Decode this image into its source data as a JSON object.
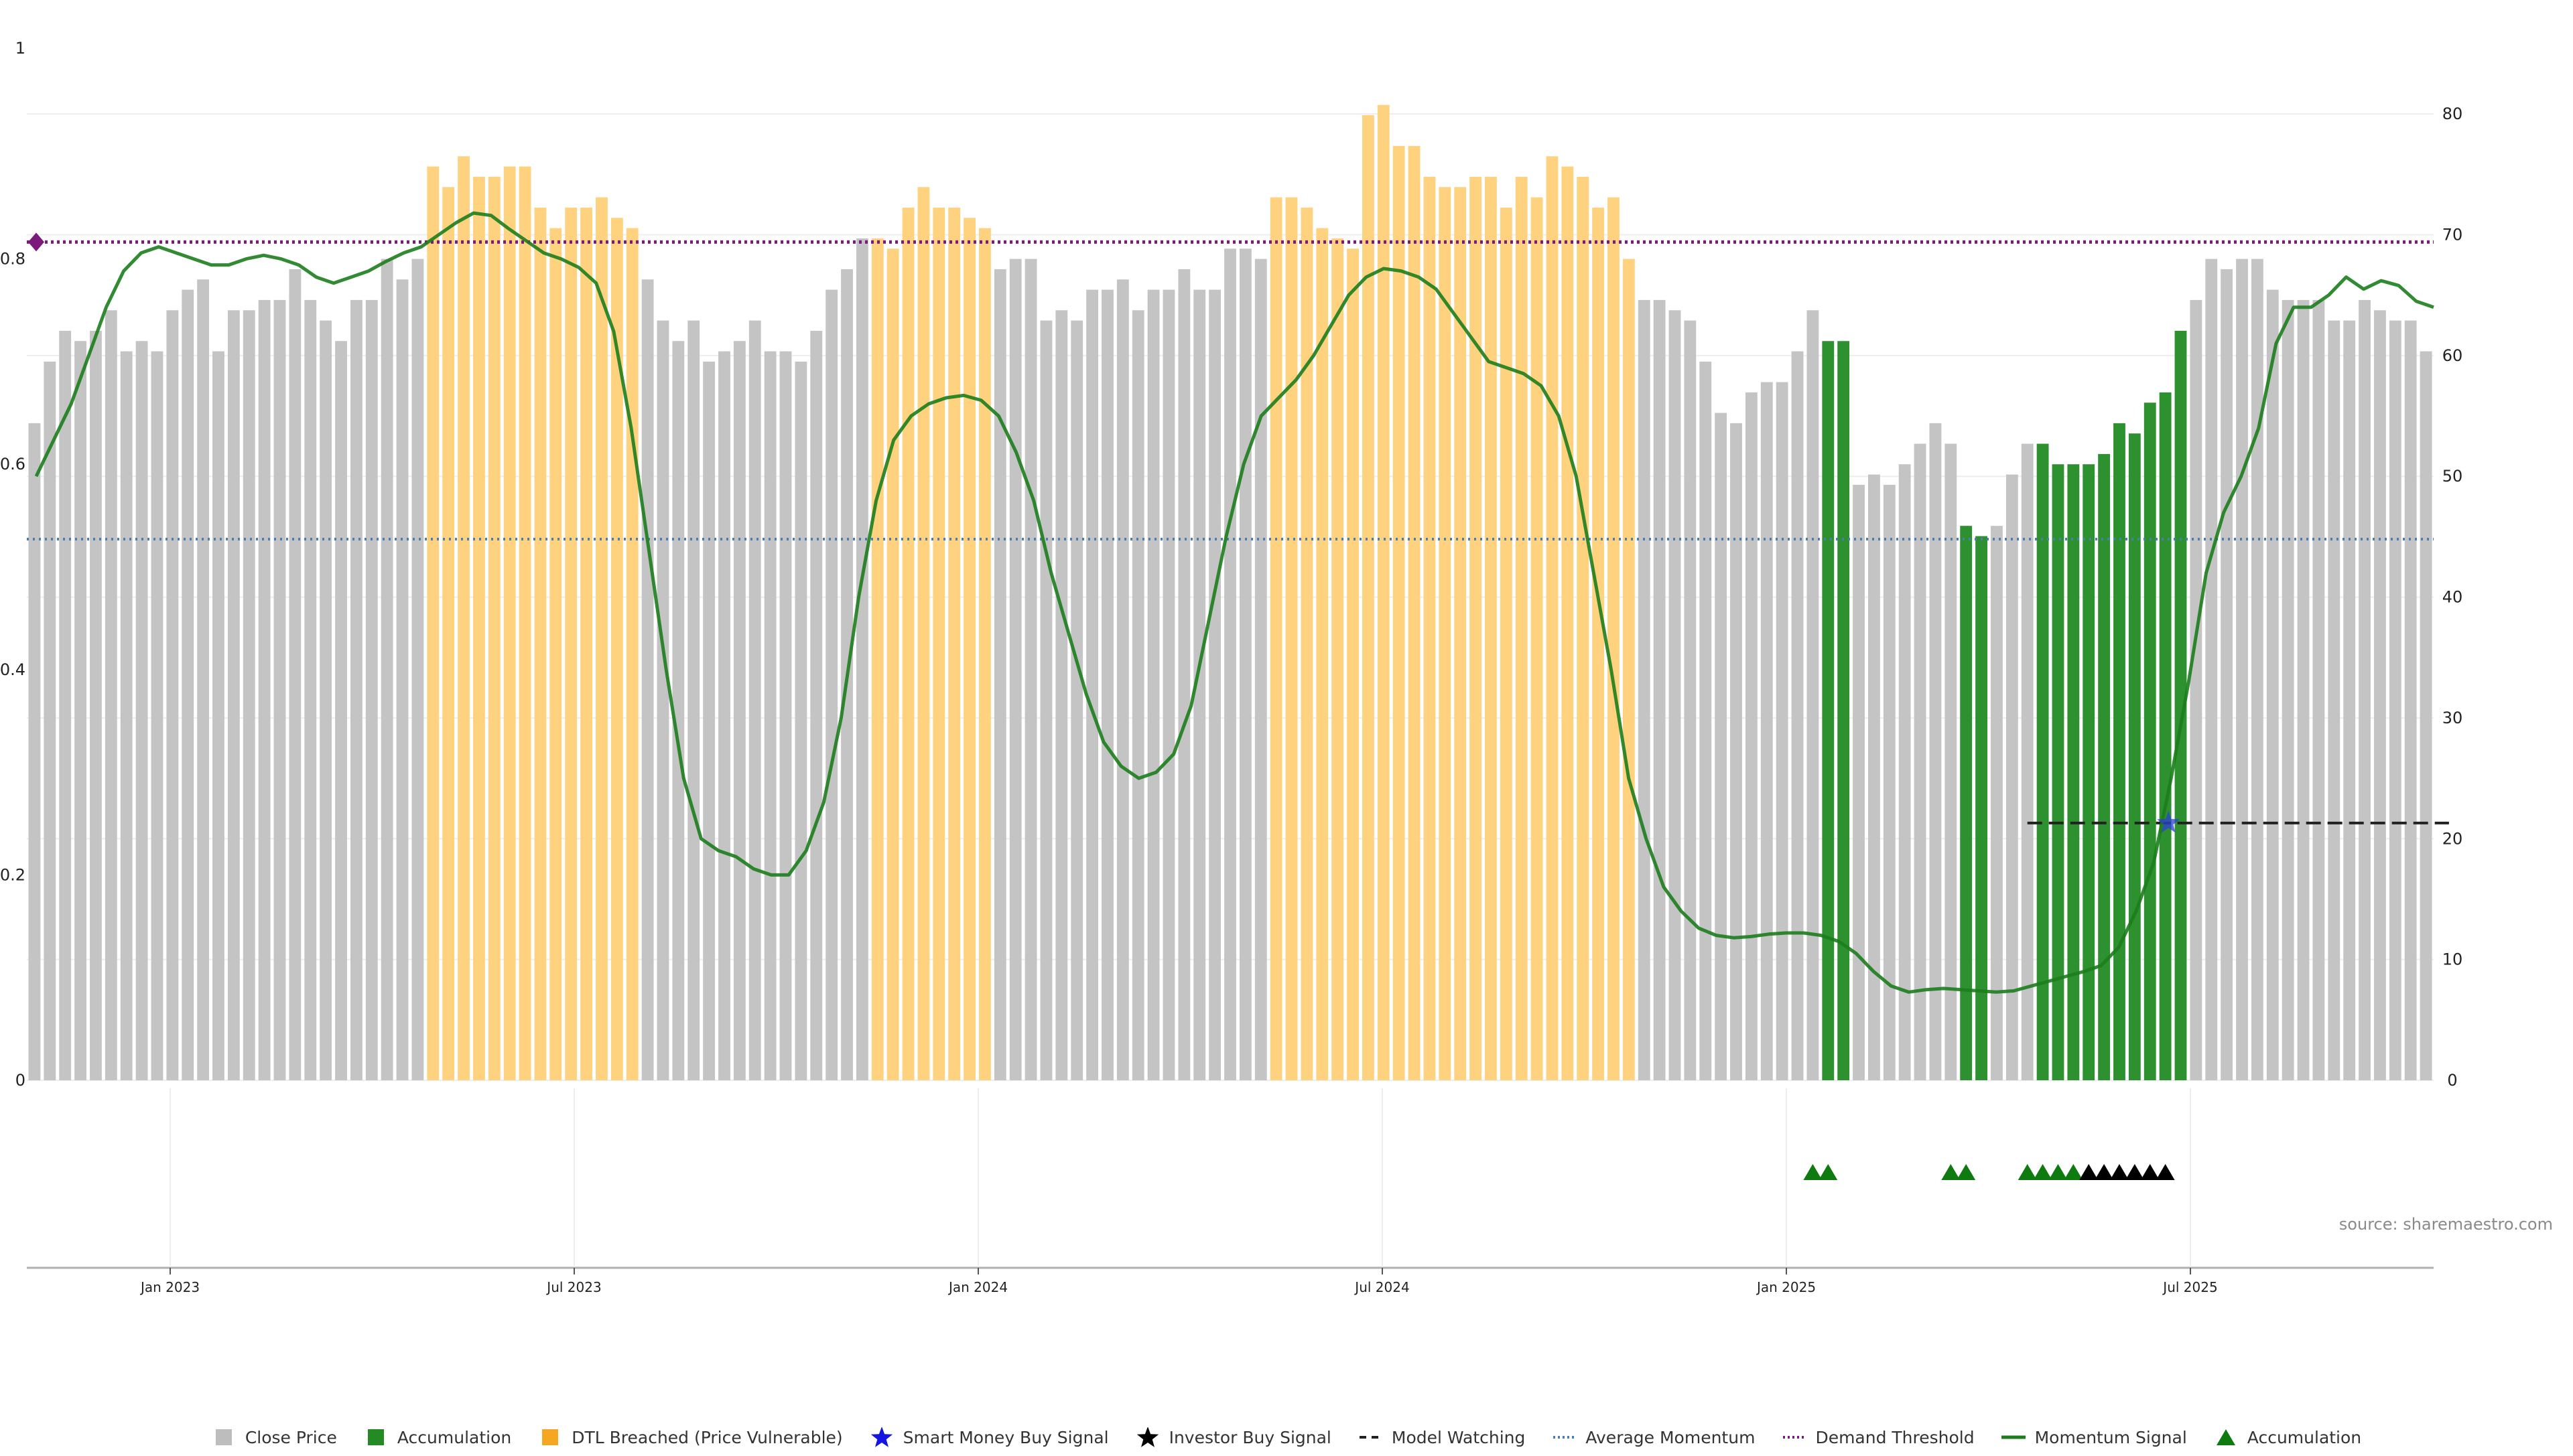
{
  "colors": {
    "close_price": "#c4c4c4",
    "accumulation": "#2e9130",
    "dtl_breached": "#ffd27f",
    "momentum": "#1c7d1c",
    "average_momentum": "#4a7fb0",
    "demand_threshold": "#7b1a7b",
    "smart_money_star": "#2f3fd6",
    "investor_star": "#000000",
    "model_watching": "#222222",
    "grid": "#eeeeee",
    "source_text": "#8a8a8a"
  },
  "source_label": "source: sharemaestro.com",
  "legend": [
    {
      "key": "close_price",
      "label": "Close Price",
      "shape": "square",
      "color": "#bdbdbd"
    },
    {
      "key": "accumulation",
      "label": "Accumulation",
      "shape": "square",
      "color": "#248a24"
    },
    {
      "key": "dtl_breached",
      "label": "DTL Breached (Price Vulnerable)",
      "shape": "square",
      "color": "#f5a623"
    },
    {
      "key": "smart_money",
      "label": "Smart Money Buy Signal",
      "shape": "star",
      "color": "#1515e0"
    },
    {
      "key": "investor",
      "label": "Investor Buy Signal",
      "shape": "star",
      "color": "#000000"
    },
    {
      "key": "model_watching",
      "label": "Model Watching",
      "shape": "dash",
      "color": "#222222"
    },
    {
      "key": "average_momentum",
      "label": "Average Momentum",
      "shape": "dotted",
      "color": "#4a7fb0"
    },
    {
      "key": "demand_threshold",
      "label": "Demand Threshold",
      "shape": "dotted",
      "color": "#7b1a7b"
    },
    {
      "key": "momentum",
      "label": "Momentum Signal",
      "shape": "line",
      "color": "#1c7d1c"
    },
    {
      "key": "accumulation_marker",
      "label": "Accumulation",
      "shape": "triangle",
      "color": "#0f7a0f"
    }
  ],
  "chart_data": {
    "type": "bar",
    "title": "",
    "left_axis": {
      "range": [
        0,
        1
      ],
      "ticks": [
        "0",
        "0.2",
        "0.4",
        "0.6",
        "0.8",
        "1"
      ]
    },
    "right_axis": {
      "range": [
        0,
        85
      ],
      "ticks": [
        "0",
        "10",
        "20",
        "30",
        "40",
        "50",
        "60",
        "70",
        "80"
      ]
    },
    "x_axis": {
      "ticks": [
        "Jan 2023",
        "Jul 2023",
        "Jan 2024",
        "Jul 2024",
        "Jan 2025",
        "Jul 2025"
      ]
    },
    "grid": true,
    "legend_position": "bottom",
    "bar_categories": [
      "C",
      "A",
      "D"
    ],
    "bar_category_names": {
      "C": "Close Price",
      "A": "Accumulation",
      "D": "DTL Breached (Price Vulnerable)"
    },
    "bars": {
      "values": [
        0.64,
        0.7,
        0.73,
        0.72,
        0.73,
        0.75,
        0.71,
        0.72,
        0.71,
        0.75,
        0.77,
        0.78,
        0.71,
        0.75,
        0.75,
        0.76,
        0.76,
        0.79,
        0.76,
        0.74,
        0.72,
        0.76,
        0.76,
        0.8,
        0.78,
        0.8,
        0.89,
        0.87,
        0.9,
        0.88,
        0.88,
        0.89,
        0.89,
        0.85,
        0.83,
        0.85,
        0.85,
        0.86,
        0.84,
        0.83,
        0.78,
        0.74,
        0.72,
        0.74,
        0.7,
        0.71,
        0.72,
        0.74,
        0.71,
        0.71,
        0.7,
        0.73,
        0.77,
        0.79,
        0.82,
        0.82,
        0.81,
        0.85,
        0.87,
        0.85,
        0.85,
        0.84,
        0.83,
        0.79,
        0.8,
        0.8,
        0.74,
        0.75,
        0.74,
        0.77,
        0.77,
        0.78,
        0.75,
        0.77,
        0.77,
        0.79,
        0.77,
        0.77,
        0.81,
        0.81,
        0.8,
        0.86,
        0.86,
        0.85,
        0.83,
        0.82,
        0.81,
        0.94,
        0.95,
        0.91,
        0.91,
        0.88,
        0.87,
        0.87,
        0.88,
        0.88,
        0.85,
        0.88,
        0.86,
        0.9,
        0.89,
        0.88,
        0.85,
        0.86,
        0.8,
        0.76,
        0.76,
        0.75,
        0.74,
        0.7,
        0.65,
        0.64,
        0.67,
        0.68,
        0.68,
        0.71,
        0.75,
        0.72,
        0.72,
        0.58,
        0.59,
        0.58,
        0.6,
        0.62,
        0.64,
        0.62,
        0.54,
        0.53,
        0.54,
        0.59,
        0.62,
        0.62,
        0.6,
        0.6,
        0.6,
        0.61,
        0.64,
        0.63,
        0.66,
        0.67,
        0.73,
        0.76,
        0.8,
        0.79,
        0.8,
        0.8,
        0.77,
        0.76,
        0.76,
        0.76,
        0.74,
        0.74,
        0.76,
        0.75,
        0.74,
        0.74,
        0.71
      ],
      "categories": "CCCCCCCCCCCCCCCCCCCCCCCCCCDDDDDDDDDDDDDDCCCCCCCCCCCCCCCDDDDDDDDCCCCCCCCCCCCCCCCCCDDDDDDDDDDDDDDDDDDDDDDDDCCCCCCCCCCCCAACCCCCCCAACCCAAAAAAAAAACCCCCCCCCCCCCCCCC"
    },
    "momentum_signal": {
      "name": "Momentum Signal",
      "axis": "right",
      "points": [
        [
          0,
          50
        ],
        [
          2,
          53
        ],
        [
          4,
          56
        ],
        [
          6,
          60
        ],
        [
          8,
          64
        ],
        [
          10,
          67
        ],
        [
          12,
          68.5
        ],
        [
          14,
          69
        ],
        [
          16,
          68.5
        ],
        [
          18,
          68
        ],
        [
          20,
          67.5
        ],
        [
          22,
          67.5
        ],
        [
          24,
          68
        ],
        [
          26,
          68.3
        ],
        [
          28,
          68
        ],
        [
          30,
          67.5
        ],
        [
          32,
          66.5
        ],
        [
          34,
          66
        ],
        [
          36,
          66.5
        ],
        [
          38,
          67
        ],
        [
          40,
          67.8
        ],
        [
          42,
          68.5
        ],
        [
          44,
          69
        ],
        [
          46,
          70
        ],
        [
          48,
          71
        ],
        [
          50,
          71.8
        ],
        [
          52,
          71.6
        ],
        [
          54,
          70.5
        ],
        [
          56,
          69.5
        ],
        [
          58,
          68.5
        ],
        [
          60,
          68
        ],
        [
          62,
          67.3
        ],
        [
          64,
          66
        ],
        [
          66,
          62
        ],
        [
          68,
          54
        ],
        [
          70,
          44
        ],
        [
          72,
          34
        ],
        [
          74,
          25
        ],
        [
          76,
          20
        ],
        [
          78,
          19
        ],
        [
          80,
          18.5
        ],
        [
          82,
          17.5
        ],
        [
          84,
          17
        ],
        [
          86,
          17
        ],
        [
          88,
          19
        ],
        [
          90,
          23
        ],
        [
          92,
          30
        ],
        [
          94,
          40
        ],
        [
          96,
          48
        ],
        [
          98,
          53
        ],
        [
          100,
          55
        ],
        [
          102,
          56
        ],
        [
          104,
          56.5
        ],
        [
          106,
          56.7
        ],
        [
          108,
          56.3
        ],
        [
          110,
          55
        ],
        [
          112,
          52
        ],
        [
          114,
          48
        ],
        [
          116,
          42
        ],
        [
          118,
          37
        ],
        [
          120,
          32
        ],
        [
          122,
          28
        ],
        [
          124,
          26
        ],
        [
          126,
          25
        ],
        [
          128,
          25.5
        ],
        [
          130,
          27
        ],
        [
          132,
          31
        ],
        [
          134,
          38
        ],
        [
          136,
          45
        ],
        [
          138,
          51
        ],
        [
          140,
          55
        ],
        [
          142,
          56.5
        ],
        [
          144,
          58
        ],
        [
          146,
          60
        ],
        [
          148,
          62.5
        ],
        [
          150,
          65
        ],
        [
          152,
          66.5
        ],
        [
          154,
          67.2
        ],
        [
          156,
          67
        ],
        [
          158,
          66.5
        ],
        [
          160,
          65.5
        ],
        [
          162,
          63.5
        ],
        [
          164,
          61.5
        ],
        [
          166,
          59.5
        ],
        [
          168,
          59
        ],
        [
          170,
          58.5
        ],
        [
          172,
          57.5
        ],
        [
          174,
          55
        ],
        [
          176,
          50
        ],
        [
          178,
          42
        ],
        [
          180,
          34
        ],
        [
          182,
          25
        ],
        [
          184,
          20
        ],
        [
          186,
          16
        ],
        [
          188,
          14
        ],
        [
          190,
          12.6
        ],
        [
          192,
          12
        ],
        [
          194,
          11.8
        ],
        [
          196,
          11.9
        ],
        [
          198,
          12.1
        ],
        [
          200,
          12.2
        ],
        [
          202,
          12.2
        ],
        [
          204,
          12
        ],
        [
          206,
          11.5
        ],
        [
          208,
          10.5
        ],
        [
          210,
          9
        ],
        [
          212,
          7.8
        ],
        [
          214,
          7.3
        ],
        [
          216,
          7.5
        ],
        [
          218,
          7.6
        ],
        [
          220,
          7.5
        ],
        [
          222,
          7.4
        ],
        [
          224,
          7.3
        ],
        [
          226,
          7.4
        ],
        [
          228,
          7.8
        ],
        [
          230,
          8.2
        ],
        [
          232,
          8.6
        ],
        [
          234,
          9
        ],
        [
          236,
          9.5
        ],
        [
          238,
          11
        ],
        [
          240,
          14
        ],
        [
          242,
          18
        ],
        [
          244,
          25
        ],
        [
          246,
          33
        ],
        [
          248,
          42
        ],
        [
          250,
          47
        ],
        [
          252,
          50
        ],
        [
          254,
          54
        ],
        [
          256,
          61
        ],
        [
          258,
          64
        ],
        [
          260,
          64
        ],
        [
          262,
          65
        ],
        [
          264,
          66.5
        ],
        [
          266,
          65.5
        ],
        [
          268,
          66.2
        ],
        [
          270,
          65.8
        ],
        [
          272,
          64.5
        ],
        [
          274,
          64
        ]
      ],
      "x_range": [
        0,
        274
      ]
    },
    "average_momentum": {
      "name": "Average Momentum",
      "axis": "right",
      "value": 44.8
    },
    "demand_threshold": {
      "name": "Demand Threshold",
      "axis": "right",
      "value": 69.4
    },
    "demand_marker": {
      "axis": "right",
      "value": 69.4,
      "shape": "diamond"
    },
    "model_watching": {
      "name": "Model Watching",
      "axis": "right",
      "value": 21.3,
      "start_bar": 130,
      "end_bar": 157
    },
    "smart_money_signal": {
      "name": "Smart Money Buy Signal",
      "bar": 139.2,
      "axis": "right",
      "value": 21.3
    },
    "accumulation_markers": [
      116,
      117,
      125,
      126,
      130,
      131,
      132,
      133
    ],
    "investor_markers": [
      134,
      135,
      136,
      137,
      138,
      139
    ]
  }
}
